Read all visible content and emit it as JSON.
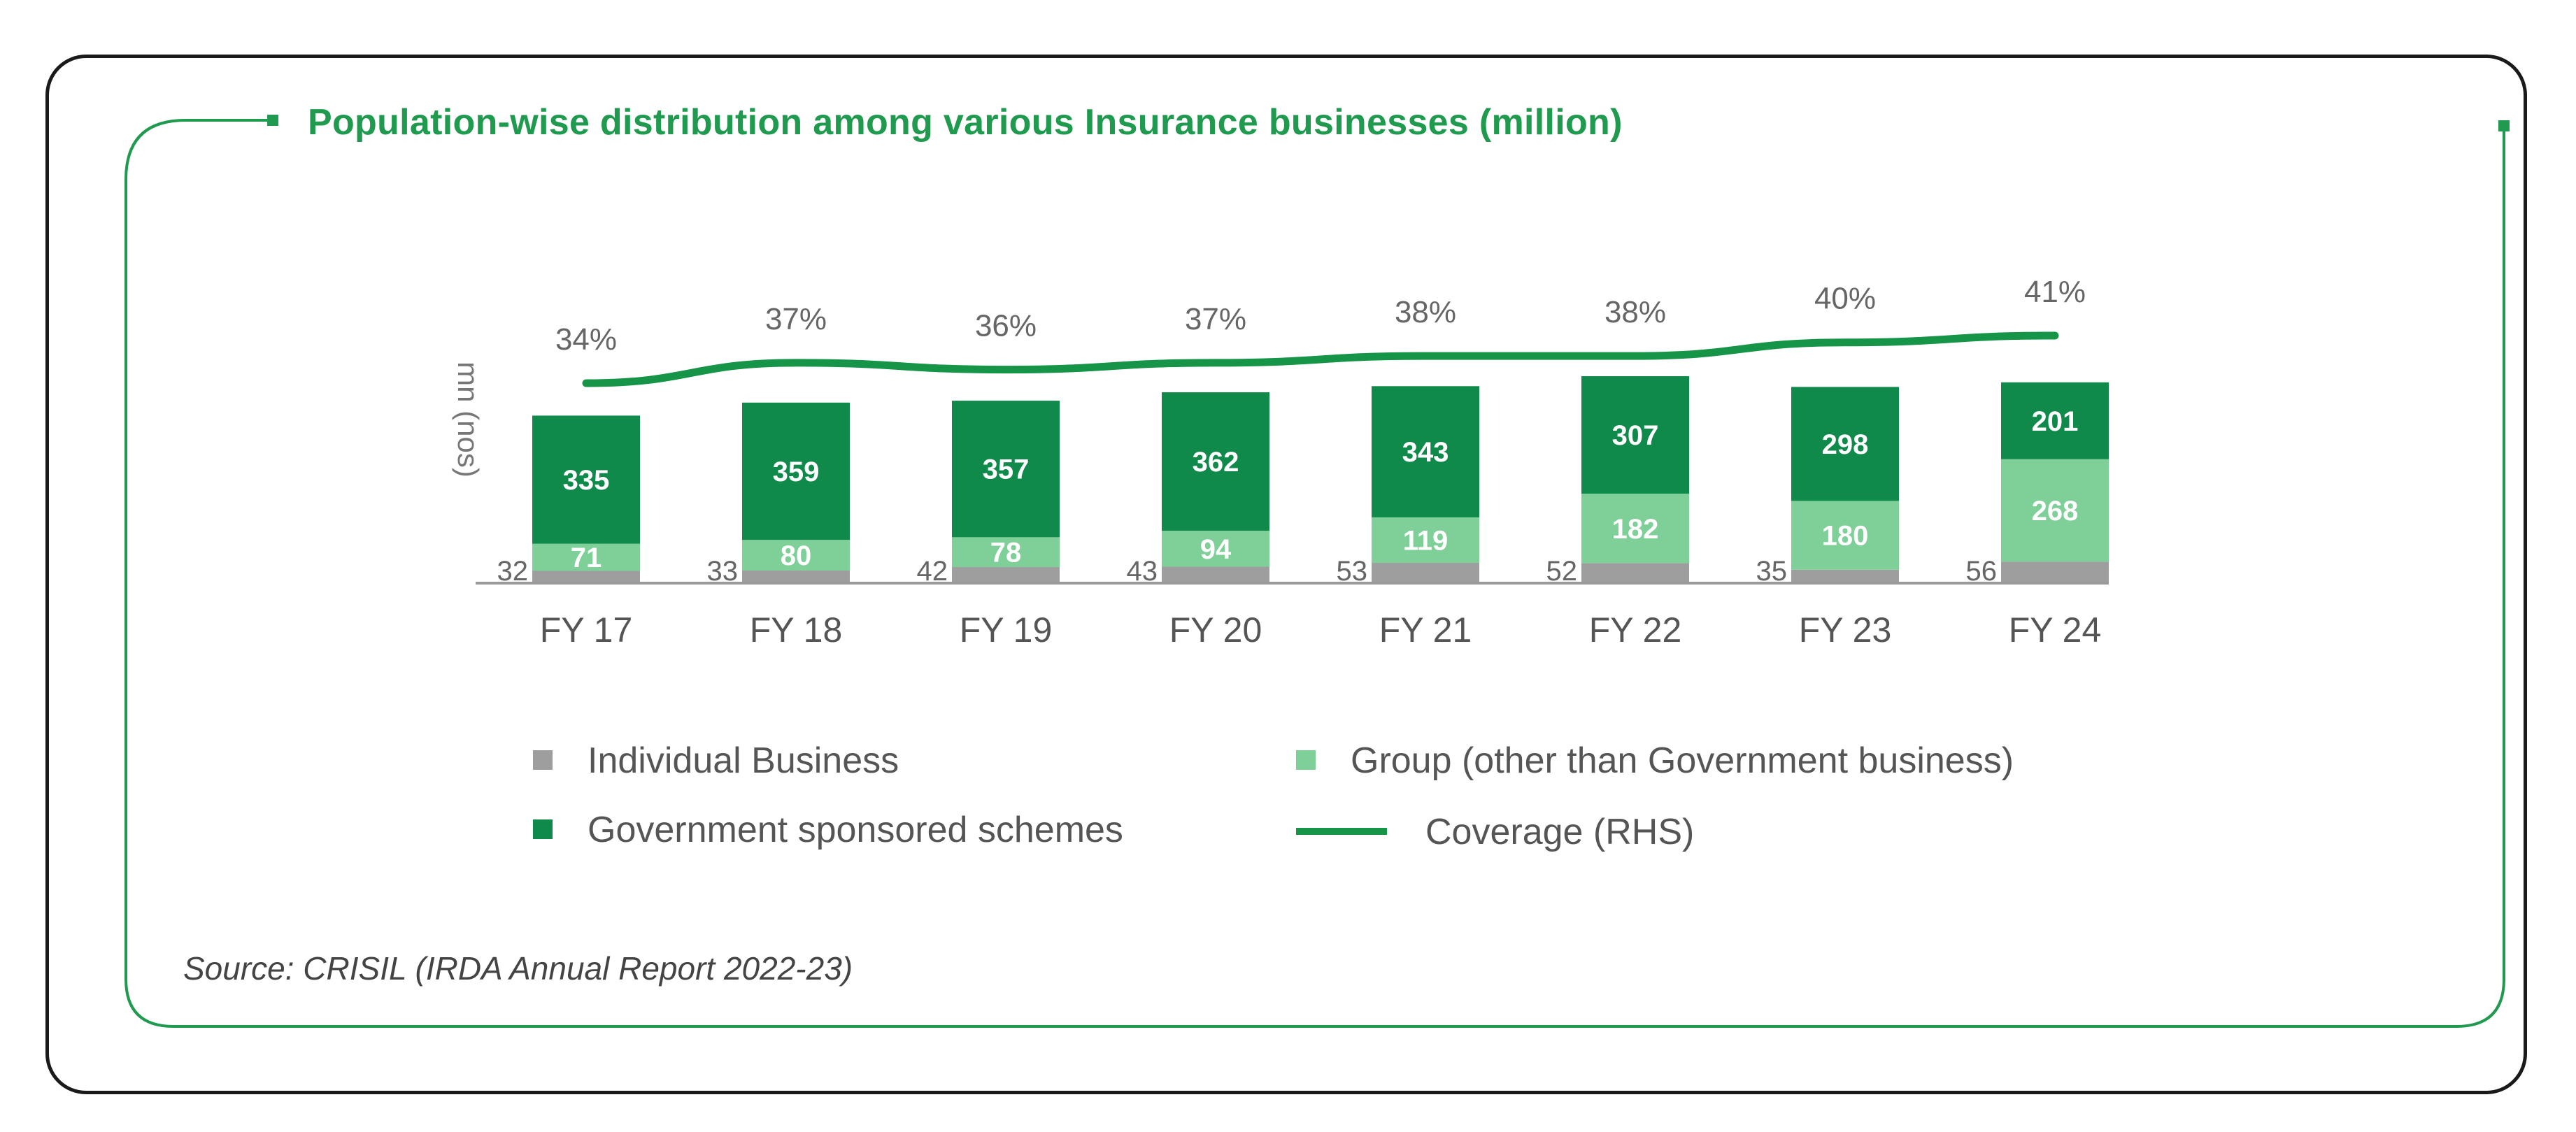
{
  "title": "Population-wise distribution among various Insurance businesses (million)",
  "source": "Source: CRISIL (IRDA Annual Report 2022-23)",
  "colors": {
    "individual": "#9e9e9e",
    "group": "#7fcf98",
    "government": "#0f8a4a",
    "coverage": "#169448",
    "frame": "#1f9a4e",
    "title": "#1f9a4e",
    "axis": "#9a9a9a"
  },
  "legend": {
    "individual": "Individual Business",
    "group": "Group (other than Government business)",
    "government": "Government sponsored schemes",
    "coverage": "Coverage (RHS)"
  },
  "chart_data": {
    "type": "bar",
    "stacked": true,
    "title": "Population-wise distribution among various Insurance businesses (million)",
    "ylabel": "mn (nos)",
    "ylim": [
      0,
      650
    ],
    "categories": [
      "FY 17",
      "FY 18",
      "FY 19",
      "FY 20",
      "FY 21",
      "FY 22",
      "FY 23",
      "FY 24"
    ],
    "series": [
      {
        "name": "Individual Business",
        "values": [
          32,
          33,
          42,
          43,
          53,
          52,
          35,
          56
        ]
      },
      {
        "name": "Group (other than Government business)",
        "values": [
          71,
          80,
          78,
          94,
          119,
          182,
          180,
          268
        ]
      },
      {
        "name": "Government sponsored schemes",
        "values": [
          335,
          359,
          357,
          362,
          343,
          307,
          298,
          201
        ]
      }
    ],
    "line_series": {
      "name": "Coverage (RHS)",
      "values": [
        34,
        37,
        36,
        37,
        38,
        38,
        40,
        41
      ],
      "labels": [
        "34%",
        "37%",
        "36%",
        "37%",
        "38%",
        "38%",
        "40%",
        "41%"
      ]
    }
  }
}
